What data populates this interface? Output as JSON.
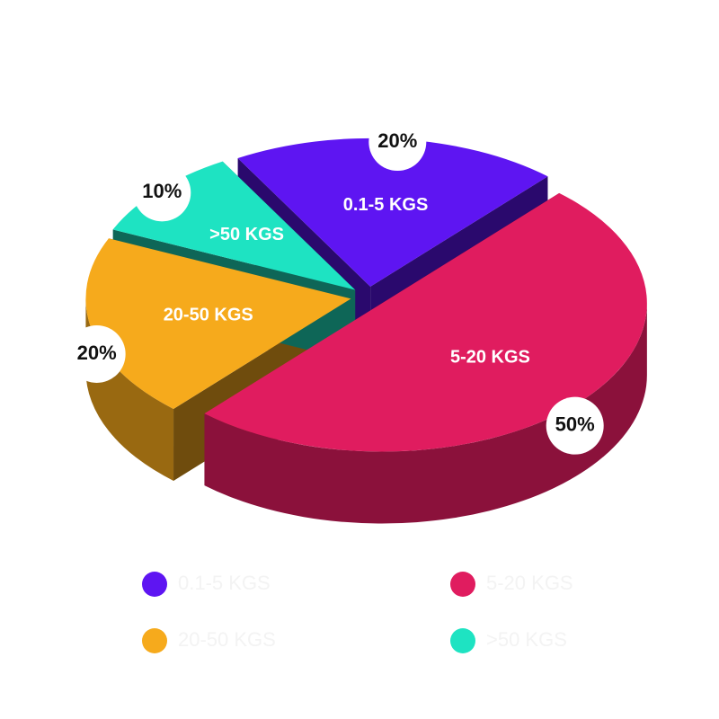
{
  "chart_data": {
    "type": "pie",
    "categories": [
      "0.1-5 KGS",
      "5-20 KGS",
      "20-50 KGS",
      ">50 KGS"
    ],
    "values": [
      20,
      50,
      20,
      10
    ],
    "value_labels": [
      "20%",
      "50%",
      "20%",
      "10%"
    ],
    "colors": [
      "#5e15f2",
      "#e01c5f",
      "#f6aa1c",
      "#1ee3c2"
    ],
    "legend": true
  }
}
